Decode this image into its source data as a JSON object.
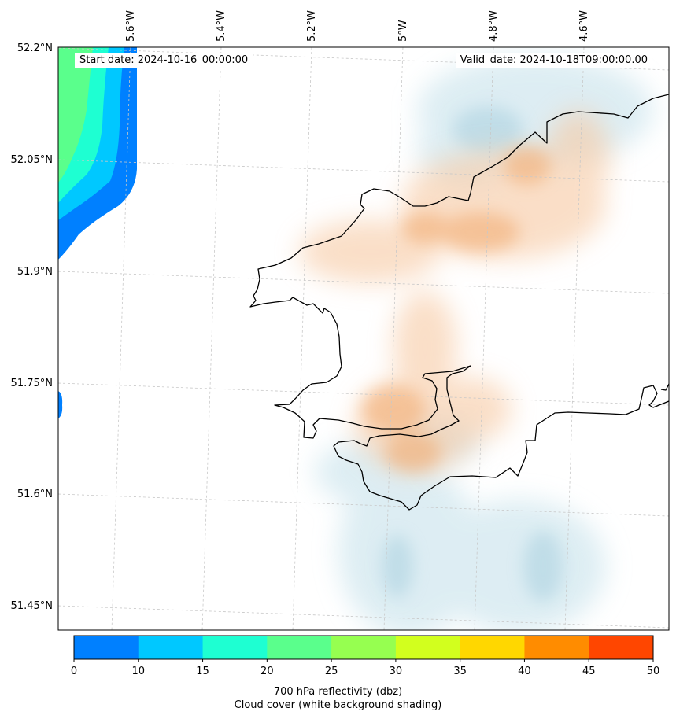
{
  "map": {
    "start_date": "Start date: 2024-10-16_00:00:00",
    "valid_date": "Valid_date: 2024-10-18T09:00:00.00",
    "lon_labels": [
      "5.6°W",
      "5.4°W",
      "5.2°W",
      "5°W",
      "4.8°W",
      "4.6°W"
    ],
    "lat_labels": [
      "52.2°N",
      "52.05°N",
      "51.9°N",
      "51.75°N",
      "51.6°N",
      "51.45°N"
    ],
    "field": "700 hPa reflectivity (dbz)",
    "overlay": "Cloud cover (white background shading)"
  },
  "colorbar": {
    "bounds": [
      "0",
      "10",
      "15",
      "20",
      "25",
      "30",
      "35",
      "40",
      "45",
      "50"
    ],
    "colors": [
      "#0080ff",
      "#00c8ff",
      "#1effd2",
      "#5aff8c",
      "#96ff50",
      "#d2ff1e",
      "#ffd700",
      "#ff8c00",
      "#ff4600"
    ],
    "label_line1": "700 hPa reflectivity (dbz)",
    "label_line2": "Cloud cover (white background shading)"
  }
}
